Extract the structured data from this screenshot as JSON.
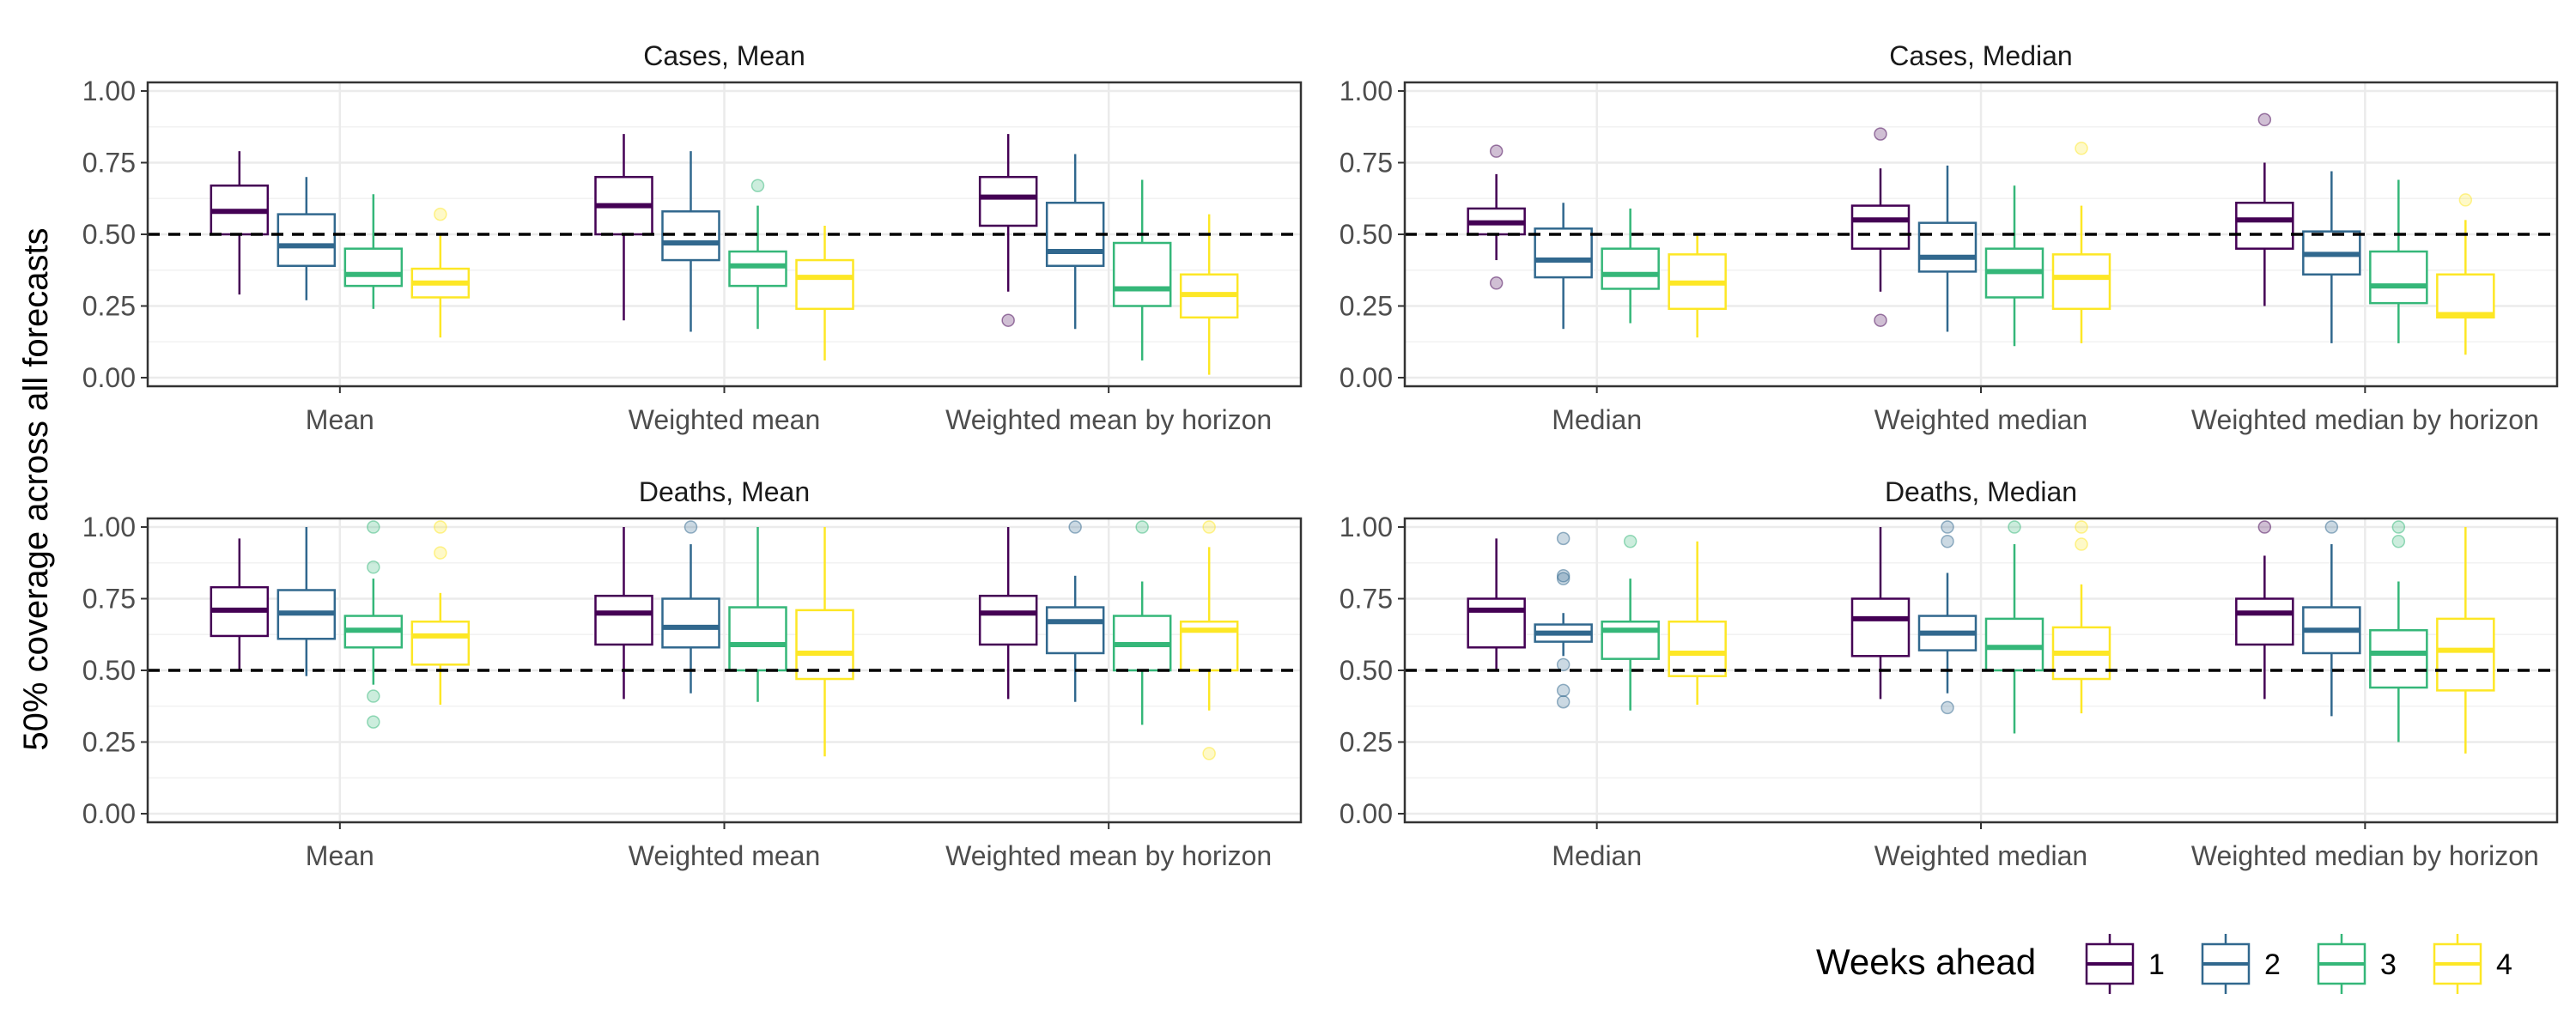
{
  "chart_data": {
    "type": "box",
    "ylabel": "50% coverage across all forecasts",
    "ylim": [
      -0.03,
      1.03
    ],
    "yticks": [
      "0.00",
      "0.25",
      "0.50",
      "0.75",
      "1.00"
    ],
    "ytick_values": [
      0,
      0.25,
      0.5,
      0.75,
      1.0
    ],
    "reference_line": 0.5,
    "grid": true,
    "legend": {
      "title": "Weeks ahead",
      "placement": "bottom-right",
      "entries": [
        "1",
        "2",
        "3",
        "4"
      ],
      "colors": [
        "#440154",
        "#31688e",
        "#35b779",
        "#fde725"
      ]
    },
    "panels": [
      {
        "title": "Cases, Mean",
        "categories": [
          "Mean",
          "Weighted mean",
          "Weighted mean by horizon"
        ],
        "boxes": [
          [
            {
              "min": 0.29,
              "q1": 0.5,
              "median": 0.58,
              "q3": 0.67,
              "max": 0.79,
              "outliers": []
            },
            {
              "min": 0.27,
              "q1": 0.39,
              "median": 0.46,
              "q3": 0.57,
              "max": 0.7,
              "outliers": []
            },
            {
              "min": 0.24,
              "q1": 0.32,
              "median": 0.36,
              "q3": 0.45,
              "max": 0.64,
              "outliers": []
            },
            {
              "min": 0.14,
              "q1": 0.28,
              "median": 0.33,
              "q3": 0.38,
              "max": 0.5,
              "outliers": [
                0.57
              ]
            }
          ],
          [
            {
              "min": 0.2,
              "q1": 0.5,
              "median": 0.6,
              "q3": 0.7,
              "max": 0.85,
              "outliers": []
            },
            {
              "min": 0.16,
              "q1": 0.41,
              "median": 0.47,
              "q3": 0.58,
              "max": 0.79,
              "outliers": []
            },
            {
              "min": 0.17,
              "q1": 0.32,
              "median": 0.39,
              "q3": 0.44,
              "max": 0.6,
              "outliers": [
                0.67
              ]
            },
            {
              "min": 0.06,
              "q1": 0.24,
              "median": 0.35,
              "q3": 0.41,
              "max": 0.53,
              "outliers": []
            }
          ],
          [
            {
              "min": 0.3,
              "q1": 0.53,
              "median": 0.63,
              "q3": 0.7,
              "max": 0.85,
              "outliers": [
                0.2
              ]
            },
            {
              "min": 0.17,
              "q1": 0.39,
              "median": 0.44,
              "q3": 0.61,
              "max": 0.78,
              "outliers": []
            },
            {
              "min": 0.06,
              "q1": 0.25,
              "median": 0.31,
              "q3": 0.47,
              "max": 0.69,
              "outliers": []
            },
            {
              "min": 0.01,
              "q1": 0.21,
              "median": 0.29,
              "q3": 0.36,
              "max": 0.57,
              "outliers": []
            }
          ]
        ]
      },
      {
        "title": "Cases, Median",
        "categories": [
          "Median",
          "Weighted median",
          "Weighted median by horizon"
        ],
        "boxes": [
          [
            {
              "min": 0.41,
              "q1": 0.5,
              "median": 0.54,
              "q3": 0.59,
              "max": 0.71,
              "outliers": [
                0.79,
                0.33
              ]
            },
            {
              "min": 0.17,
              "q1": 0.35,
              "median": 0.41,
              "q3": 0.52,
              "max": 0.61,
              "outliers": []
            },
            {
              "min": 0.19,
              "q1": 0.31,
              "median": 0.36,
              "q3": 0.45,
              "max": 0.59,
              "outliers": []
            },
            {
              "min": 0.14,
              "q1": 0.24,
              "median": 0.33,
              "q3": 0.43,
              "max": 0.5,
              "outliers": []
            }
          ],
          [
            {
              "min": 0.3,
              "q1": 0.45,
              "median": 0.55,
              "q3": 0.6,
              "max": 0.73,
              "outliers": [
                0.85,
                0.2
              ]
            },
            {
              "min": 0.16,
              "q1": 0.37,
              "median": 0.42,
              "q3": 0.54,
              "max": 0.74,
              "outliers": []
            },
            {
              "min": 0.11,
              "q1": 0.28,
              "median": 0.37,
              "q3": 0.45,
              "max": 0.67,
              "outliers": []
            },
            {
              "min": 0.12,
              "q1": 0.24,
              "median": 0.35,
              "q3": 0.43,
              "max": 0.6,
              "outliers": [
                0.8
              ]
            }
          ],
          [
            {
              "min": 0.25,
              "q1": 0.45,
              "median": 0.55,
              "q3": 0.61,
              "max": 0.75,
              "outliers": [
                0.9
              ]
            },
            {
              "min": 0.12,
              "q1": 0.36,
              "median": 0.43,
              "q3": 0.51,
              "max": 0.72,
              "outliers": []
            },
            {
              "min": 0.12,
              "q1": 0.26,
              "median": 0.32,
              "q3": 0.44,
              "max": 0.69,
              "outliers": []
            },
            {
              "min": 0.08,
              "q1": 0.21,
              "median": 0.22,
              "q3": 0.36,
              "max": 0.55,
              "outliers": [
                0.62
              ]
            }
          ]
        ]
      },
      {
        "title": "Deaths, Mean",
        "categories": [
          "Mean",
          "Weighted mean",
          "Weighted mean by horizon"
        ],
        "boxes": [
          [
            {
              "min": 0.5,
              "q1": 0.62,
              "median": 0.71,
              "q3": 0.79,
              "max": 0.96,
              "outliers": []
            },
            {
              "min": 0.48,
              "q1": 0.61,
              "median": 0.7,
              "q3": 0.78,
              "max": 1.0,
              "outliers": []
            },
            {
              "min": 0.45,
              "q1": 0.58,
              "median": 0.64,
              "q3": 0.69,
              "max": 0.82,
              "outliers": [
                1.0,
                0.86,
                0.41,
                0.32
              ]
            },
            {
              "min": 0.38,
              "q1": 0.52,
              "median": 0.62,
              "q3": 0.67,
              "max": 0.77,
              "outliers": [
                1.0,
                0.91
              ]
            }
          ],
          [
            {
              "min": 0.4,
              "q1": 0.59,
              "median": 0.7,
              "q3": 0.76,
              "max": 1.0,
              "outliers": []
            },
            {
              "min": 0.42,
              "q1": 0.58,
              "median": 0.65,
              "q3": 0.75,
              "max": 0.94,
              "outliers": [
                1.0
              ]
            },
            {
              "min": 0.39,
              "q1": 0.5,
              "median": 0.59,
              "q3": 0.72,
              "max": 1.0,
              "outliers": []
            },
            {
              "min": 0.2,
              "q1": 0.47,
              "median": 0.56,
              "q3": 0.71,
              "max": 1.0,
              "outliers": []
            }
          ],
          [
            {
              "min": 0.4,
              "q1": 0.59,
              "median": 0.7,
              "q3": 0.76,
              "max": 1.0,
              "outliers": []
            },
            {
              "min": 0.39,
              "q1": 0.56,
              "median": 0.67,
              "q3": 0.72,
              "max": 0.83,
              "outliers": [
                1.0
              ]
            },
            {
              "min": 0.31,
              "q1": 0.5,
              "median": 0.59,
              "q3": 0.69,
              "max": 0.81,
              "outliers": [
                1.0
              ]
            },
            {
              "min": 0.36,
              "q1": 0.5,
              "median": 0.64,
              "q3": 0.67,
              "max": 0.93,
              "outliers": [
                1.0,
                0.21
              ]
            }
          ]
        ]
      },
      {
        "title": "Deaths, Median",
        "categories": [
          "Median",
          "Weighted median",
          "Weighted median by horizon"
        ],
        "boxes": [
          [
            {
              "min": 0.5,
              "q1": 0.58,
              "median": 0.71,
              "q3": 0.75,
              "max": 0.96,
              "outliers": []
            },
            {
              "min": 0.55,
              "q1": 0.6,
              "median": 0.63,
              "q3": 0.66,
              "max": 0.7,
              "outliers": [
                0.96,
                0.83,
                0.82,
                0.52,
                0.43,
                0.39
              ]
            },
            {
              "min": 0.36,
              "q1": 0.54,
              "median": 0.64,
              "q3": 0.67,
              "max": 0.82,
              "outliers": [
                0.95
              ]
            },
            {
              "min": 0.38,
              "q1": 0.48,
              "median": 0.56,
              "q3": 0.67,
              "max": 0.95,
              "outliers": []
            }
          ],
          [
            {
              "min": 0.4,
              "q1": 0.55,
              "median": 0.68,
              "q3": 0.75,
              "max": 1.0,
              "outliers": []
            },
            {
              "min": 0.42,
              "q1": 0.57,
              "median": 0.63,
              "q3": 0.69,
              "max": 0.84,
              "outliers": [
                1.0,
                0.95,
                0.37
              ]
            },
            {
              "min": 0.28,
              "q1": 0.5,
              "median": 0.58,
              "q3": 0.68,
              "max": 0.94,
              "outliers": [
                1.0
              ]
            },
            {
              "min": 0.35,
              "q1": 0.47,
              "median": 0.56,
              "q3": 0.65,
              "max": 0.8,
              "outliers": [
                1.0,
                0.94
              ]
            }
          ],
          [
            {
              "min": 0.4,
              "q1": 0.59,
              "median": 0.7,
              "q3": 0.75,
              "max": 0.9,
              "outliers": [
                1.0
              ]
            },
            {
              "min": 0.34,
              "q1": 0.56,
              "median": 0.64,
              "q3": 0.72,
              "max": 0.94,
              "outliers": [
                1.0
              ]
            },
            {
              "min": 0.25,
              "q1": 0.44,
              "median": 0.56,
              "q3": 0.64,
              "max": 0.81,
              "outliers": [
                1.0,
                0.95
              ]
            },
            {
              "min": 0.21,
              "q1": 0.43,
              "median": 0.57,
              "q3": 0.68,
              "max": 1.0,
              "outliers": []
            }
          ]
        ]
      }
    ]
  }
}
